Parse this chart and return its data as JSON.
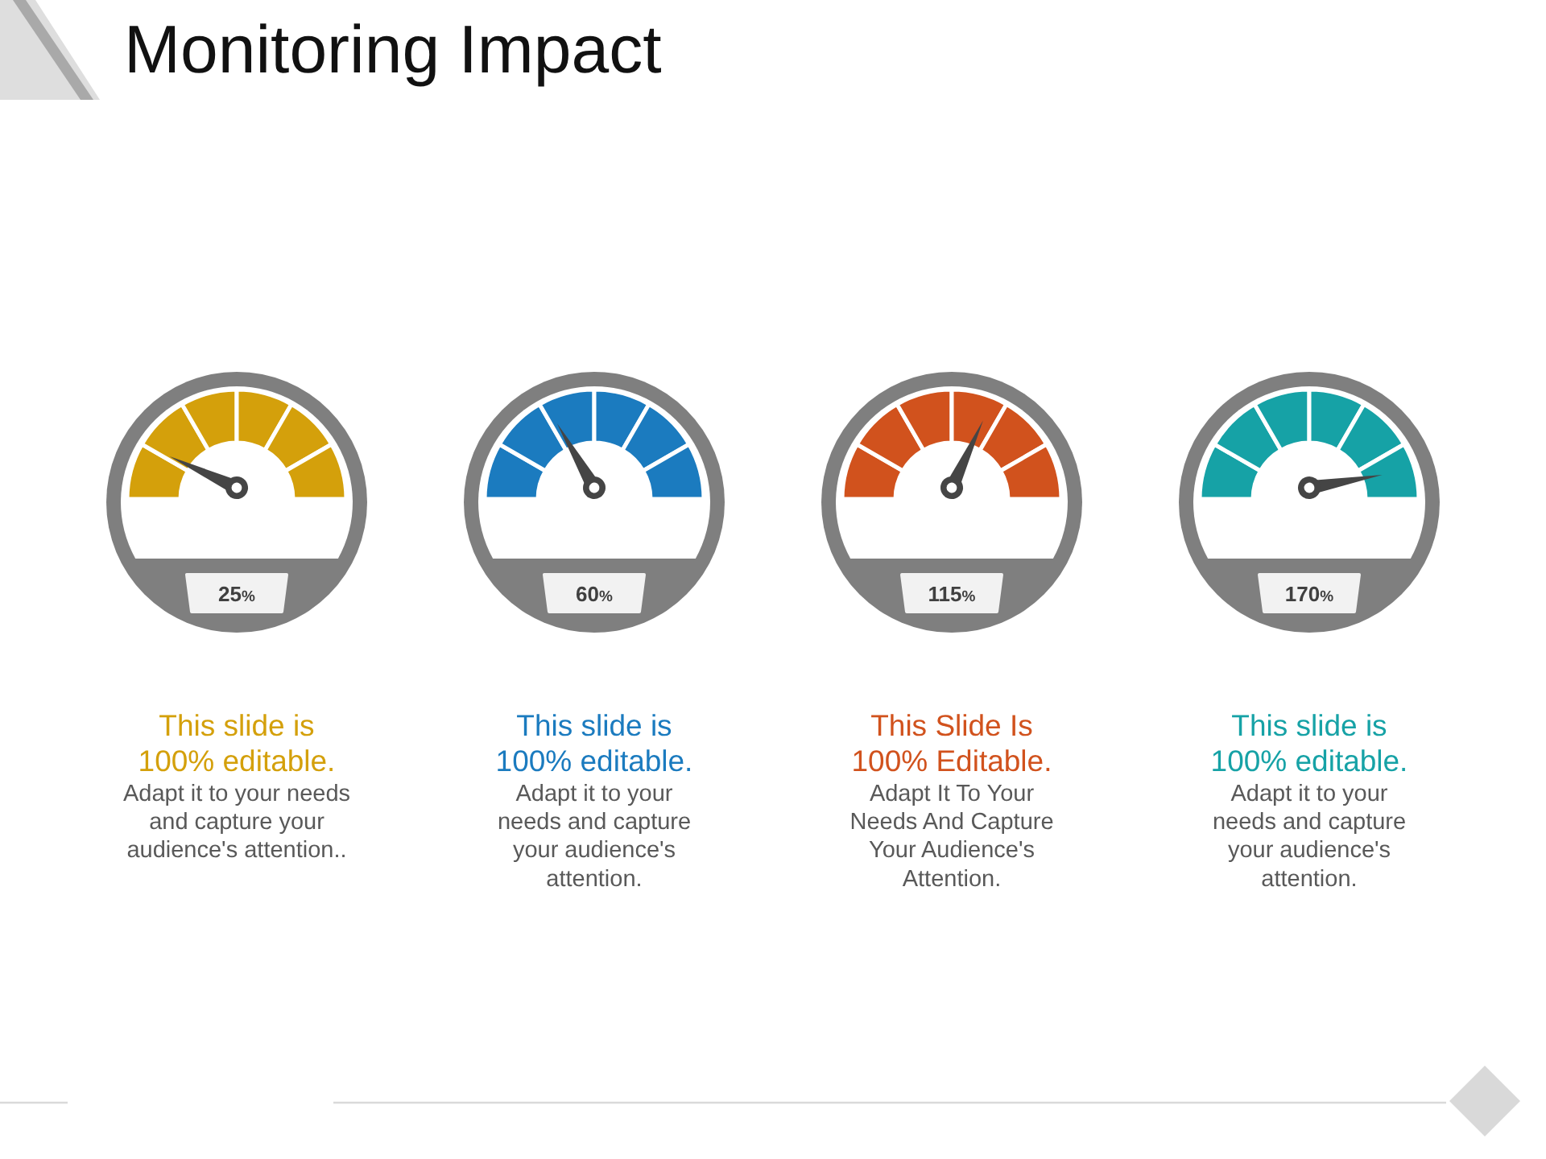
{
  "chart_data": [
    {
      "type": "other",
      "title": "Monitoring Impact"
    },
    {
      "type": "other",
      "values": [
        25
      ],
      "value_labels": [
        "25%"
      ],
      "title": "This slide is 100% editable.",
      "subtitle": "Adapt it to your needs and capture your audience's attention.."
    },
    {
      "type": "other",
      "values": [
        60
      ],
      "value_labels": [
        "60%"
      ],
      "title": "This slide is 100% editable.",
      "subtitle": "Adapt it to your needs and capture your audience's attention."
    },
    {
      "type": "other",
      "values": [
        115
      ],
      "value_labels": [
        "115%"
      ],
      "title": "This Slide Is 100% Editable.",
      "subtitle": "Adapt It To Your Needs And Capture Your Audience's Attention."
    },
    {
      "type": "other",
      "values": [
        170
      ],
      "value_labels": [
        "170%"
      ],
      "title": "This slide is 100% editable.",
      "subtitle": "Adapt it to your needs and capture your audience's attention."
    }
  ]
}
